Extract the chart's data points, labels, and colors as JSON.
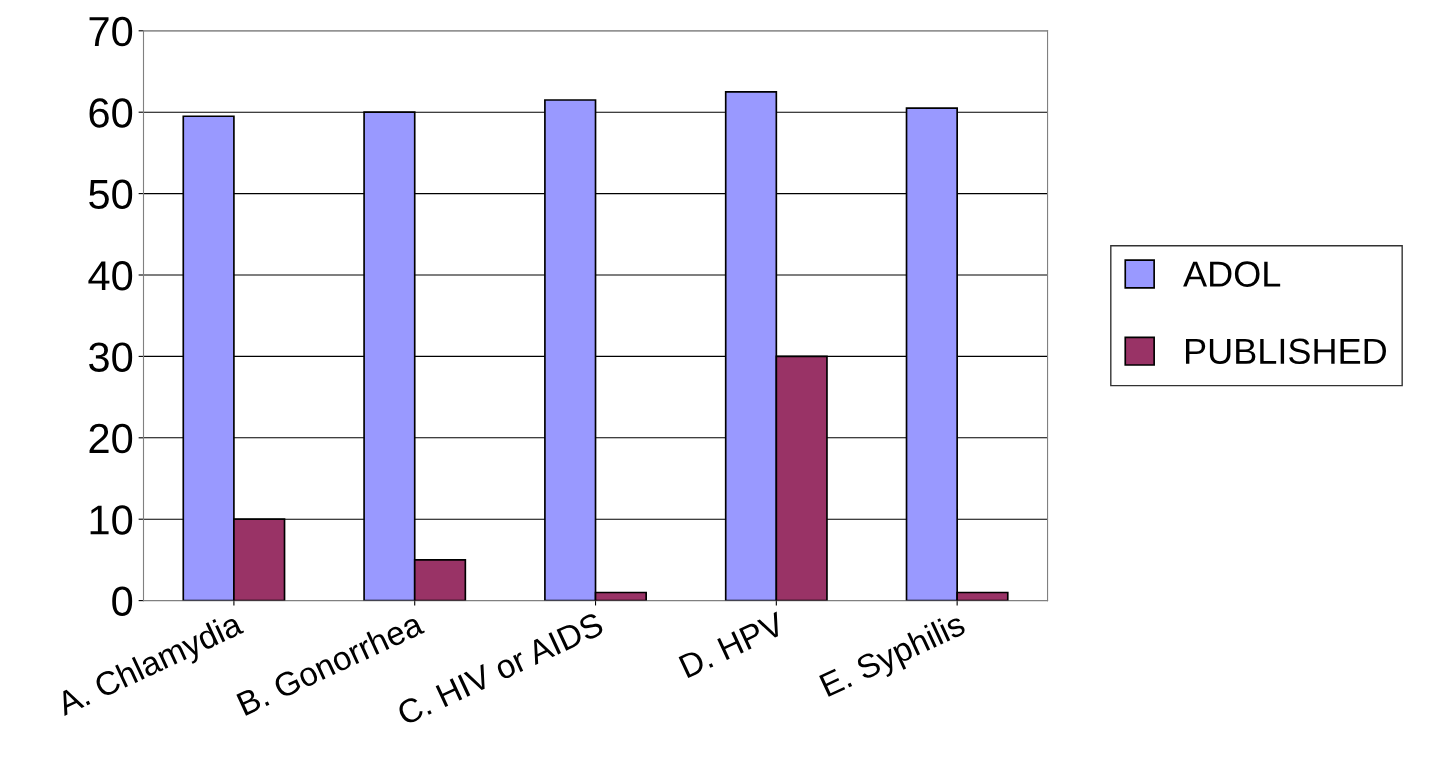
{
  "chart_data": {
    "type": "bar",
    "categories": [
      "A. Chlamydia",
      "B. Gonorrhea",
      "C. HIV or AIDS",
      "D. HPV",
      "E. Syphilis"
    ],
    "series": [
      {
        "name": "ADOL",
        "color": "#9999ff",
        "values": [
          59.5,
          60,
          61.5,
          62.5,
          60.5
        ]
      },
      {
        "name": "PUBLISHED",
        "color": "#993366",
        "values": [
          10,
          5,
          1,
          30,
          1
        ]
      }
    ],
    "ylim": [
      0,
      70
    ],
    "yticks": [
      0,
      10,
      20,
      30,
      40,
      50,
      60,
      70
    ],
    "grid": "y",
    "legend": "right"
  }
}
